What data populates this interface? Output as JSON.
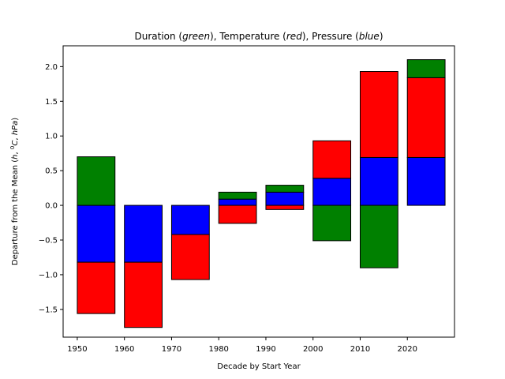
{
  "chart_data": {
    "type": "bar",
    "subtype": "stacked-diverging",
    "title_parts": [
      {
        "text": "Duration (",
        "italic": false
      },
      {
        "text": "green",
        "italic": true
      },
      {
        "text": "),  Temperature (",
        "italic": false
      },
      {
        "text": "red",
        "italic": true
      },
      {
        "text": "),  Pressure (",
        "italic": false
      },
      {
        "text": "blue",
        "italic": true
      },
      {
        "text": ")",
        "italic": false
      }
    ],
    "xlabel": "Decade by Start Year",
    "ylabel_parts": [
      {
        "text": "Departure from the Mean (",
        "italic": false
      },
      {
        "text": "h",
        "italic": true
      },
      {
        "text": ", ",
        "italic": false
      },
      {
        "text": "0",
        "italic": false,
        "superscript": true
      },
      {
        "text": "C",
        "italic": true
      },
      {
        "text": ", ",
        "italic": false
      },
      {
        "text": "hPa",
        "italic": true
      },
      {
        "text": ")",
        "italic": false
      }
    ],
    "x": [
      1950,
      1960,
      1970,
      1980,
      1990,
      2000,
      2010,
      2020
    ],
    "xticks": [
      "1950",
      "1960",
      "1970",
      "1980",
      "1990",
      "2000",
      "2010",
      "2020"
    ],
    "yticks": [
      "−1.5",
      "−1.0",
      "−0.5",
      "0.0",
      "0.5",
      "1.0",
      "1.5",
      "2.0"
    ],
    "ylim": [
      -1.9,
      2.3
    ],
    "xlim": [
      1947,
      2030
    ],
    "bar_width": 8,
    "grid": false,
    "series": [
      {
        "color": "#0000ff",
        "segments": [
          [
            0,
            -0.82
          ],
          [
            0,
            -0.82
          ],
          [
            0,
            -0.42
          ],
          [
            0,
            0.09
          ],
          [
            0,
            0.19
          ],
          [
            0,
            0.39
          ],
          [
            0,
            0.69
          ],
          [
            0,
            0.69
          ]
        ]
      },
      {
        "color": "#ff0000",
        "segments": [
          [
            -0.82,
            -1.56
          ],
          [
            -0.82,
            -1.76
          ],
          [
            -0.42,
            -1.07
          ],
          [
            0,
            -0.26
          ],
          [
            0,
            -0.06
          ],
          [
            0.39,
            0.93
          ],
          [
            0.69,
            1.93
          ],
          [
            0.69,
            1.84
          ]
        ]
      },
      {
        "color": "#008000",
        "segments": [
          [
            0,
            0.7
          ],
          [
            -0.82,
            -0.82
          ],
          [
            -0.42,
            -0.42
          ],
          [
            0.09,
            0.19
          ],
          [
            0.19,
            0.29
          ],
          [
            0,
            -0.51
          ],
          [
            0,
            -0.9
          ],
          [
            1.84,
            2.1
          ]
        ]
      }
    ]
  }
}
